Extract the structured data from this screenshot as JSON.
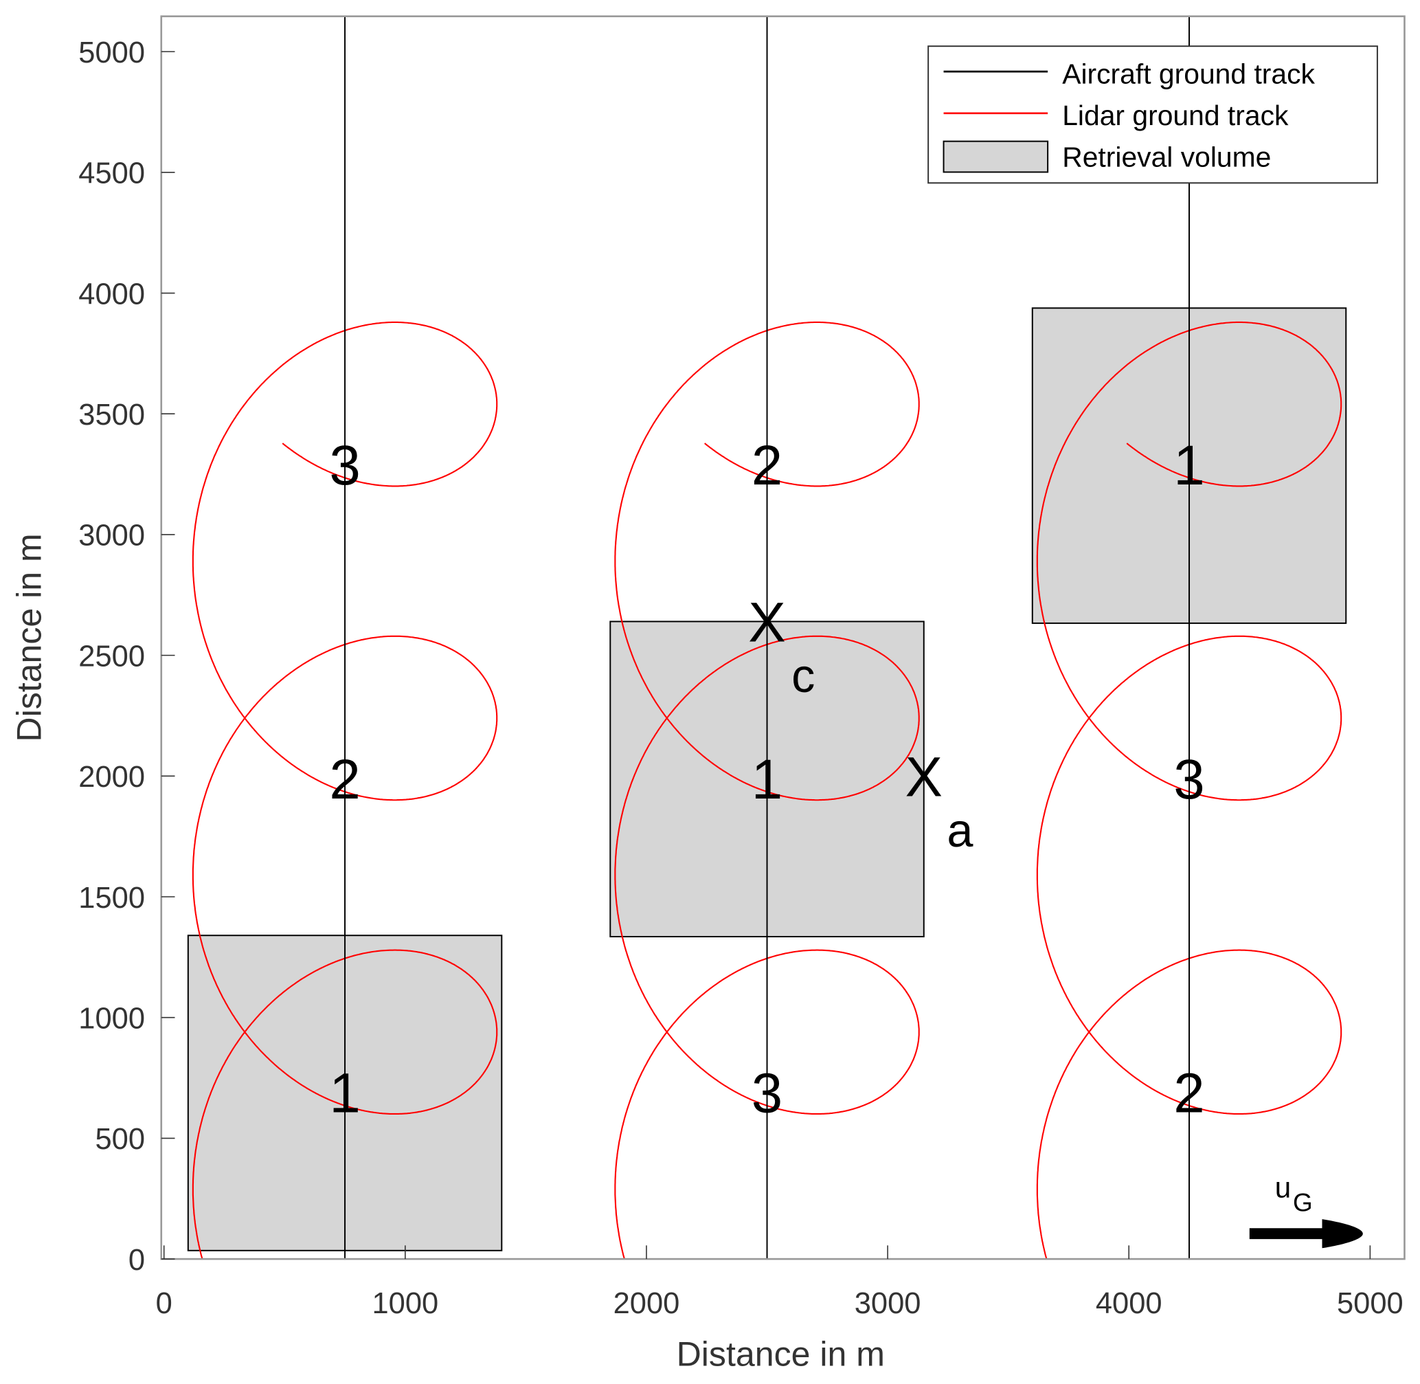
{
  "chart_data": {
    "type": "line",
    "xlabel": "Distance in m",
    "ylabel": "Distance in m",
    "xlim": [
      0,
      5150
    ],
    "ylim": [
      0,
      5150
    ],
    "xticks": [
      0,
      1000,
      2000,
      3000,
      4000,
      5000
    ],
    "yticks": [
      0,
      500,
      1000,
      1500,
      2000,
      2500,
      3000,
      3500,
      4000,
      4500,
      5000
    ],
    "grid": false,
    "legend": {
      "placement": "top-right",
      "entries": [
        {
          "label": "Aircraft ground track",
          "color": "#000000",
          "kind": "line"
        },
        {
          "label": "Lidar ground track",
          "color": "#ff0000",
          "kind": "line"
        },
        {
          "label": "Retrieval volume",
          "color": "#d6d6d6",
          "kind": "patch"
        }
      ]
    },
    "aircraft_tracks_x": [
      750,
      2500,
      4250
    ],
    "lidar_track": {
      "description_shape": "trochoid loops along each aircraft track",
      "scan_radius": 630,
      "advance_per_revolution": 1300,
      "loop_center_y": [
        940,
        2240,
        3540,
        4840
      ]
    },
    "retrieval_volumes": [
      {
        "x": [
          100,
          1400
        ],
        "y": [
          35,
          1340
        ]
      },
      {
        "x": [
          1850,
          3150
        ],
        "y": [
          1335,
          2640
        ]
      },
      {
        "x": [
          3600,
          4900
        ],
        "y": [
          2633,
          3938
        ]
      }
    ],
    "labels": [
      {
        "text": "1",
        "x": 750,
        "y": 690
      },
      {
        "text": "2",
        "x": 750,
        "y": 1990
      },
      {
        "text": "3",
        "x": 750,
        "y": 3290
      },
      {
        "text": "3",
        "x": 2500,
        "y": 690
      },
      {
        "text": "1",
        "x": 2500,
        "y": 1990
      },
      {
        "text": "2",
        "x": 2500,
        "y": 3290
      },
      {
        "text": "2",
        "x": 4250,
        "y": 690
      },
      {
        "text": "3",
        "x": 4250,
        "y": 1990
      },
      {
        "text": "1",
        "x": 4250,
        "y": 3290
      }
    ],
    "annotations": [
      {
        "main": "X",
        "sub": "c",
        "x": 2500,
        "y": 2640
      },
      {
        "main": "X",
        "sub": "a",
        "x": 3150,
        "y": 2000
      }
    ],
    "wind_arrow": {
      "main": "u",
      "sub": "G",
      "x": [
        4500,
        4970
      ],
      "y": 105
    }
  }
}
